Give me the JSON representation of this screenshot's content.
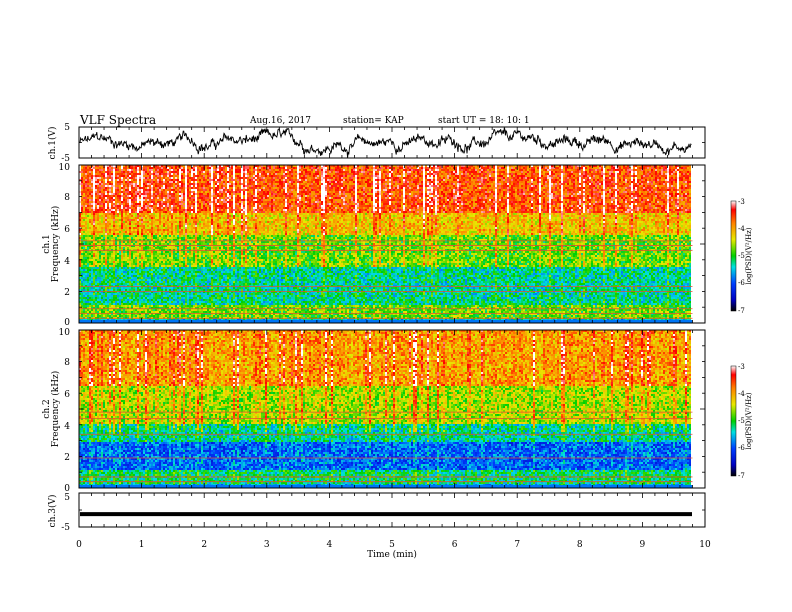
{
  "header": {
    "title": "VLF Spectra",
    "date": "Aug.16, 2017",
    "station": "station= KAP",
    "start": "start  UT =   18: 10: 1"
  },
  "chart_data": [
    {
      "type": "line",
      "panel": "ch1-waveform",
      "ylabel": "ch.1(V)",
      "ylim": [
        -5,
        5
      ],
      "yticks": [
        "5",
        "-5"
      ],
      "xlim": [
        0,
        10
      ],
      "series": [
        {
          "approx_range": [
            -4,
            4
          ],
          "trace_color": "#000000"
        }
      ]
    },
    {
      "type": "heatmap",
      "panel": "ch1-spectrogram",
      "ylabel": "ch.1\nFrequency (kHz)",
      "ylim": [
        0,
        10
      ],
      "yticks": [
        "0",
        "2",
        "4",
        "6",
        "8",
        "10"
      ],
      "xlim": [
        0,
        9.8
      ],
      "colorbar": {
        "label": "log(PSD)(V²/Hz)",
        "range": [
          -7,
          -3
        ],
        "ticks": [
          "-3",
          "-4",
          "-5",
          "-6",
          "-7"
        ]
      },
      "bands": [
        {
          "freq_khz": [
            7.0,
            10.0
          ],
          "log_psd": -3.6
        },
        {
          "freq_khz": [
            5.6,
            7.0
          ],
          "log_psd": -4.2
        },
        {
          "freq_khz": [
            3.6,
            5.6
          ],
          "log_psd": -4.8
        },
        {
          "freq_khz": [
            1.2,
            3.6
          ],
          "log_psd": -5.3
        },
        {
          "freq_khz": [
            0.3,
            1.2
          ],
          "log_psd": -4.8
        }
      ],
      "lines_khz": [
        0.3,
        0.6,
        0.9,
        2.0,
        2.3,
        4.6,
        4.9,
        5.2
      ]
    },
    {
      "type": "heatmap",
      "panel": "ch2-spectrogram",
      "ylabel": "ch.2\nFrequency (kHz)",
      "ylim": [
        0,
        10
      ],
      "yticks": [
        "0",
        "2",
        "4",
        "6",
        "8",
        "10"
      ],
      "xlim": [
        0,
        9.8
      ],
      "colorbar": {
        "label": "log(PSD)(V²/Hz)",
        "range": [
          -7,
          -3
        ],
        "ticks": [
          "-3",
          "-4",
          "-5",
          "-6",
          "-7"
        ]
      },
      "bands": [
        {
          "freq_khz": [
            6.5,
            10.0
          ],
          "log_psd": -4.0
        },
        {
          "freq_khz": [
            4.0,
            6.5
          ],
          "log_psd": -4.6
        },
        {
          "freq_khz": [
            2.9,
            4.0
          ],
          "log_psd": -5.3
        },
        {
          "freq_khz": [
            1.2,
            2.9
          ],
          "log_psd": -5.9
        },
        {
          "freq_khz": [
            0.2,
            1.2
          ],
          "log_psd": -5.2
        }
      ],
      "lines_khz": [
        0.4,
        0.7,
        1.9,
        3.4,
        4.4,
        4.8
      ]
    },
    {
      "type": "line",
      "panel": "ch3-waveform",
      "ylabel": "ch.3(V)",
      "ylim": [
        -5,
        5
      ],
      "yticks": [
        "5",
        "-5"
      ],
      "xlim": [
        0,
        10
      ],
      "series": [
        {
          "approx_value": -1.2,
          "trace_color": "#000000"
        }
      ]
    }
  ],
  "xaxis": {
    "label": "Time  (min)",
    "ticks": [
      "0",
      "1",
      "2",
      "3",
      "4",
      "5",
      "6",
      "7",
      "8",
      "9",
      "10"
    ]
  }
}
